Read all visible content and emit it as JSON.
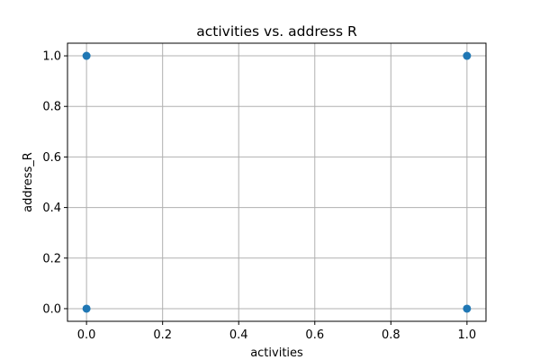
{
  "chart_data": {
    "type": "scatter",
    "title": "activities vs. address R",
    "xlabel": "activities",
    "ylabel": "address_R",
    "xlim": [
      -0.05,
      1.05
    ],
    "ylim": [
      -0.05,
      1.05
    ],
    "xticks": [
      0.0,
      0.2,
      0.4,
      0.6,
      0.8,
      1.0
    ],
    "yticks": [
      0.0,
      0.2,
      0.4,
      0.6,
      0.8,
      1.0
    ],
    "xtick_labels": [
      "0.0",
      "0.2",
      "0.4",
      "0.6",
      "0.8",
      "1.0"
    ],
    "ytick_labels": [
      "0.0",
      "0.2",
      "0.4",
      "0.6",
      "0.8",
      "1.0"
    ],
    "grid": true,
    "points": [
      {
        "x": 0,
        "y": 0
      },
      {
        "x": 0,
        "y": 1
      },
      {
        "x": 1,
        "y": 0
      },
      {
        "x": 1,
        "y": 1
      }
    ],
    "marker_color": "#1f77b4",
    "grid_color": "#b0b0b0"
  }
}
